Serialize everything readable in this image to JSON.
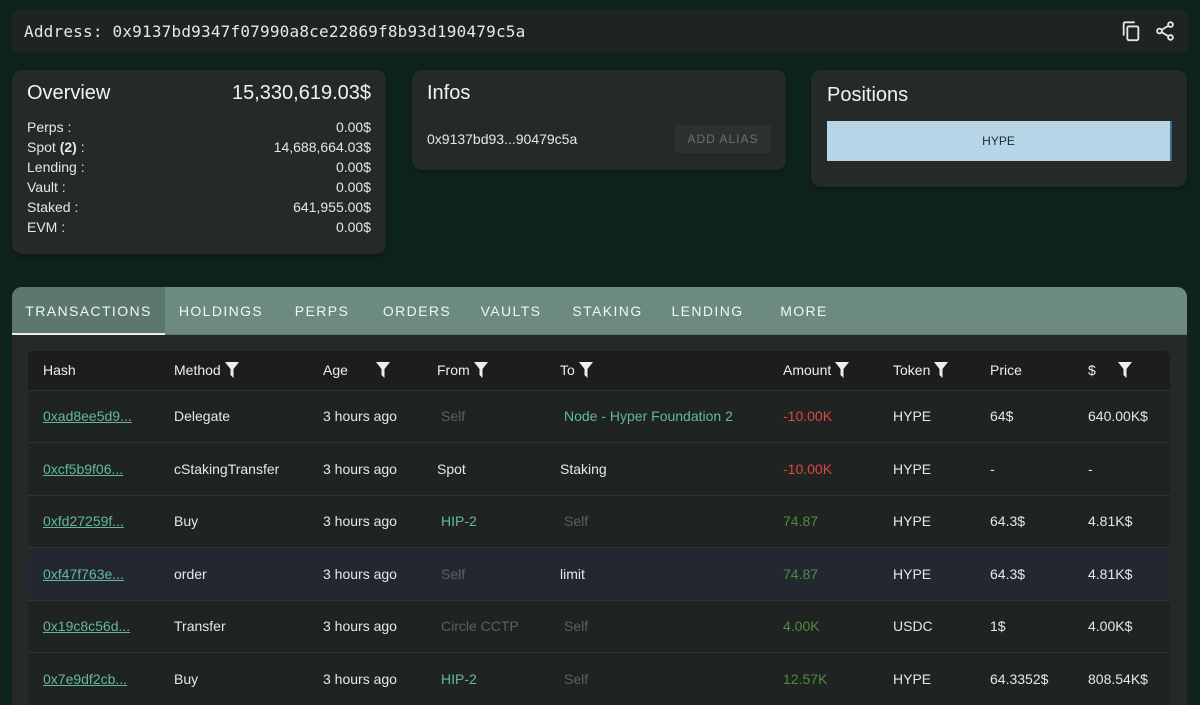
{
  "address_bar": {
    "label": "Address: 0x9137bd9347f07990a8ce22869f8b93d190479c5a",
    "icons": [
      "copy-icon",
      "share-icon"
    ]
  },
  "overview": {
    "title": "Overview",
    "total": "15,330,619.03$",
    "rows": [
      {
        "label": "Perps :",
        "value": "0.00$"
      },
      {
        "label_pre": "Spot ",
        "label_bold": "(2)",
        "label_post": " :",
        "value": "14,688,664.03$"
      },
      {
        "label": "Lending :",
        "value": "0.00$"
      },
      {
        "label": "Vault :",
        "value": "0.00$"
      },
      {
        "label": "Staked :",
        "value": "641,955.00$"
      },
      {
        "label": "EVM :",
        "value": "0.00$"
      }
    ]
  },
  "infos": {
    "title": "Infos",
    "address_short": "0x9137bd93...90479c5a",
    "alias_button": "ADD ALIAS"
  },
  "positions": {
    "title": "Positions",
    "bar_label": "HYPE",
    "bar_color": "#b6d6e8"
  },
  "tabs": [
    "TRANSACTIONS",
    "HOLDINGS",
    "PERPS",
    "ORDERS",
    "VAULTS",
    "STAKING",
    "LENDING",
    "MORE"
  ],
  "active_tab": "TRANSACTIONS",
  "table": {
    "headers": [
      "Hash",
      "Method",
      "Age",
      "From",
      "To",
      "Amount",
      "Token",
      "Price",
      "$"
    ],
    "rows": [
      {
        "hash": "0xad8ee5d9...",
        "method": "Delegate",
        "age": "3 hours ago",
        "from": "Self",
        "to": "Node - Hyper Foundation 2",
        "amount": "-10.00K",
        "token": "HYPE",
        "price": "64$",
        "usd": "640.00K$"
      },
      {
        "hash": "0xcf5b9f06...",
        "method": "cStakingTransfer",
        "age": "3 hours ago",
        "from": "Spot",
        "to": "Staking",
        "amount": "-10.00K",
        "token": "HYPE",
        "price": "-",
        "usd": "-"
      },
      {
        "hash": "0xfd27259f...",
        "method": "Buy",
        "age": "3 hours ago",
        "from": "HIP-2",
        "to": "Self",
        "amount": "74.87",
        "token": "HYPE",
        "price": "64.3$",
        "usd": "4.81K$"
      },
      {
        "hash": "0xf47f763e...",
        "method": "order",
        "age": "3 hours ago",
        "from": "Self",
        "to": "limit",
        "amount": "74.87",
        "token": "HYPE",
        "price": "64.3$",
        "usd": "4.81K$"
      },
      {
        "hash": "0x19c8c56d...",
        "method": "Transfer",
        "age": "3 hours ago",
        "from": "Circle CCTP",
        "to": "Self",
        "amount": "4.00K",
        "token": "USDC",
        "price": "1$",
        "usd": "4.00K$"
      },
      {
        "hash": "0x7e9df2cb...",
        "method": "Buy",
        "age": "3 hours ago",
        "from": "HIP-2",
        "to": "Self",
        "amount": "12.57K",
        "token": "HYPE",
        "price": "64.3352$",
        "usd": "808.54K$"
      }
    ]
  },
  "colors": {
    "background": "#0f231e",
    "tab_bar": "#6d8a80",
    "link": "#63b89f",
    "negative": "#e0483f",
    "positive": "#4e8b45"
  }
}
